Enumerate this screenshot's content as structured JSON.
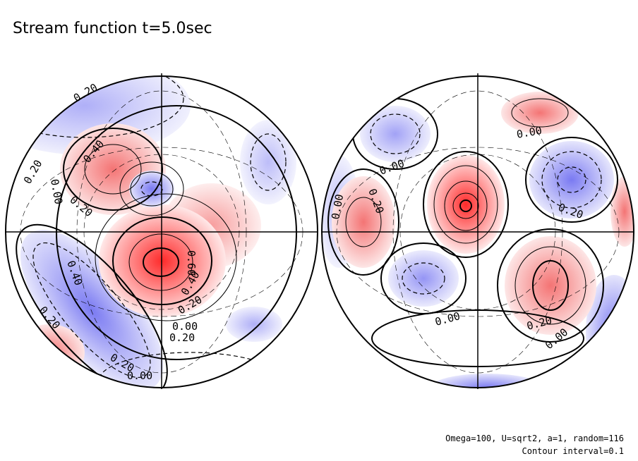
{
  "title": "Stream function t=5.0sec",
  "left_labels": [
    "0.20",
    "0.40",
    "0.20",
    "0.00",
    "0.20",
    "0.40",
    "0.60",
    "0.40",
    "0.20",
    "0.00",
    "0.20",
    "0.20",
    "0.20",
    "0.00"
  ],
  "right_labels": [
    "0.00",
    "0.00",
    "0.20",
    "0.00",
    "0.20",
    "0.00",
    "0.20",
    "0.00"
  ],
  "footnote": [
    "Omega=100, U=sqrt2, a=1, random=116",
    "Contour interval=0.1"
  ]
}
